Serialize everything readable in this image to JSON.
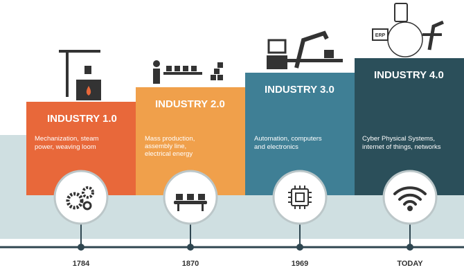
{
  "stages": [
    {
      "title": "INDUSTRY 1.0",
      "description": [
        "Mechanization, steam",
        "power, weaving loom"
      ],
      "year": "1784"
    },
    {
      "title": "INDUSTRY 2.0",
      "description": [
        "Mass production,",
        "assembly line,",
        "electrical energy"
      ],
      "year": "1870"
    },
    {
      "title": "INDUSTRY 3.0",
      "description": [
        "Automation, computers",
        "and electronics"
      ],
      "year": "1969"
    },
    {
      "title": "INDUSTRY 4.0",
      "description": [
        "Cyber Physical Systems,",
        "internet of things, networks"
      ],
      "year": "TODAY"
    }
  ],
  "icon_label": "ERP"
}
